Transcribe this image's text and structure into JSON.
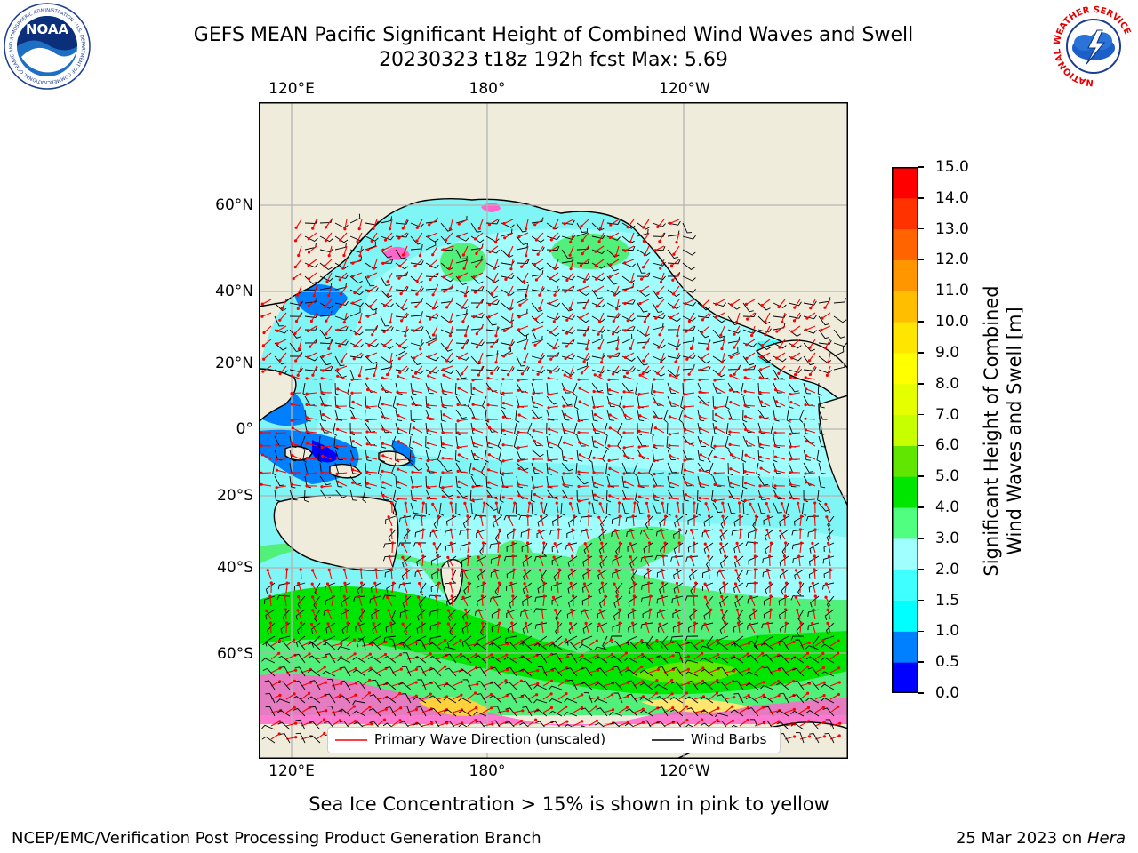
{
  "title": {
    "line1": "GEFS MEAN Pacific Significant Height of Combined Wind Waves and Swell",
    "line2": "20230323 t18z 192h fcst   Max: 5.69"
  },
  "map": {
    "lon_labels_top": [
      "120°E",
      "180°",
      "120°W"
    ],
    "lon_labels_bottom": [
      "120°E",
      "180°",
      "120°W"
    ],
    "lat_labels": [
      "60°N",
      "40°N",
      "20°N",
      "0°",
      "20°S",
      "40°S",
      "60°S"
    ]
  },
  "legend": {
    "wave_label": "Primary Wave Direction (unscaled)",
    "barb_label": "Wind Barbs",
    "wave_color": "#ff0000",
    "barb_color": "#000000"
  },
  "colorbar": {
    "label_line1": "Significant Height of Combined",
    "label_line2": "Wind Waves and Swell [m]",
    "ticks": [
      "0.0",
      "0.5",
      "1.0",
      "1.5",
      "2.0",
      "3.0",
      "4.0",
      "5.0",
      "6.0",
      "7.0",
      "8.0",
      "9.0",
      "10.0",
      "11.0",
      "12.0",
      "13.0",
      "14.0",
      "15.0"
    ],
    "colors": [
      "#0000ff",
      "#0080ff",
      "#00ffff",
      "#40ffff",
      "#a0ffff",
      "#50ff80",
      "#00e600",
      "#60e600",
      "#c8ff00",
      "#e6ff00",
      "#ffff00",
      "#ffe600",
      "#ffbe00",
      "#ff9600",
      "#ff6400",
      "#ff3200",
      "#ff0000"
    ]
  },
  "note": "Sea Ice Concentration > 15% is shown in pink to yellow",
  "footer": {
    "left": "NCEP/EMC/Verification Post Processing Product Generation Branch",
    "date": "25 Mar 2023 on ",
    "machine": "Hera"
  },
  "logos": {
    "noaa_text": "NOAA",
    "noaa_ring_text": "NATIONAL OCEANIC AND ATMOSPHERIC ADMINISTRATION · U.S. DEPARTMENT OF COMMERCE",
    "nws_ring_text": "NATIONAL WEATHER SERVICE"
  }
}
